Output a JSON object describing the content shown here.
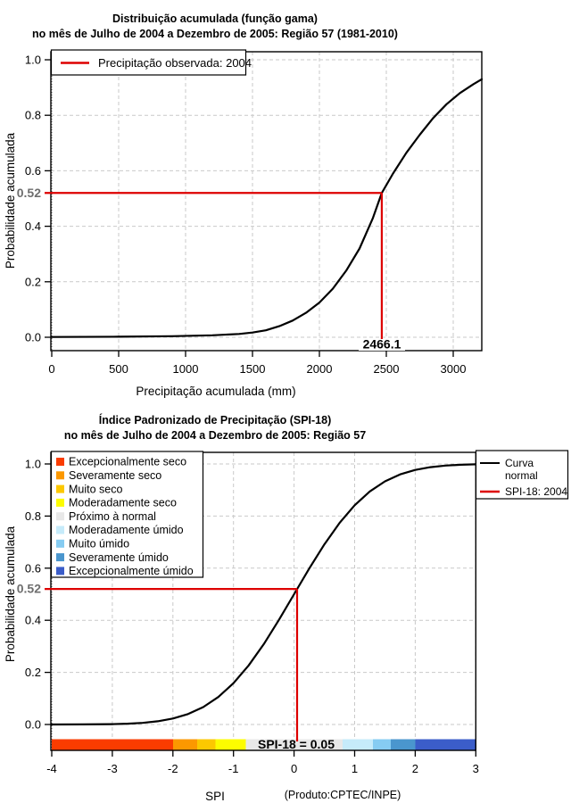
{
  "chart_data": [
    {
      "type": "line",
      "title": "Distribuição acumulada (função gama)",
      "subtitle": "no mês de Julho de 2004 a Dezembro de 2005: Região 57 (1981-2010)",
      "xlabel": "Precipitação acumulada (mm)",
      "ylabel": "Probabilidade acumulada",
      "xlim": [
        0,
        3213
      ],
      "ylim": [
        0,
        1.04
      ],
      "xticks": [
        0,
        500,
        1000,
        1500,
        2000,
        2500,
        3000
      ],
      "yticks": [
        0,
        0.2,
        0.4,
        0.6,
        0.8,
        1
      ],
      "ytick_labels": [
        "0.0",
        "0.2",
        "0.4",
        "0.6",
        "0.8",
        "1.0"
      ],
      "grid": true,
      "legend": {
        "position": "top-left",
        "entries": [
          {
            "label": "Precipitação observada: 2004",
            "color": "#dd0000"
          }
        ]
      },
      "highlight": {
        "x": 2466.1,
        "y": 0.52,
        "x_label": "2466.1",
        "y_label": "0.52",
        "color": "#dd0000"
      },
      "series": [
        {
          "name": "Distribuição acumulada (função gama)",
          "color": "#000000",
          "points": [
            [
              0,
              0.001
            ],
            [
              500,
              0.002
            ],
            [
              900,
              0.004
            ],
            [
              1200,
              0.007
            ],
            [
              1400,
              0.012
            ],
            [
              1500,
              0.017
            ],
            [
              1600,
              0.025
            ],
            [
              1700,
              0.04
            ],
            [
              1800,
              0.06
            ],
            [
              1900,
              0.088
            ],
            [
              2000,
              0.125
            ],
            [
              2100,
              0.175
            ],
            [
              2200,
              0.24
            ],
            [
              2300,
              0.32
            ],
            [
              2400,
              0.43
            ],
            [
              2466.1,
              0.52
            ],
            [
              2550,
              0.59
            ],
            [
              2650,
              0.665
            ],
            [
              2750,
              0.73
            ],
            [
              2850,
              0.79
            ],
            [
              2950,
              0.84
            ],
            [
              3050,
              0.88
            ],
            [
              3150,
              0.912
            ],
            [
              3213,
              0.93
            ]
          ]
        }
      ]
    },
    {
      "type": "line",
      "title": "Índice Padronizado de Precipitação (SPI-18)",
      "subtitle": "no mês de Julho de 2004 a Dezembro de 2005: Região 57",
      "xlabel": "SPI",
      "ylabel": "Probabilidade acumulada",
      "credit": "(Produto:CPTEC/INPE)",
      "xlim": [
        -4,
        3
      ],
      "ylim": [
        0,
        1.04
      ],
      "xticks": [
        -4,
        -3,
        -2,
        -1,
        0,
        1,
        2,
        3
      ],
      "yticks": [
        0,
        0.2,
        0.4,
        0.6,
        0.8,
        1
      ],
      "ytick_labels": [
        "0.0",
        "0.2",
        "0.4",
        "0.6",
        "0.8",
        "1.0"
      ],
      "grid": true,
      "annotation": "SPI-18 = 0.05",
      "highlight": {
        "x": 0.05,
        "y": 0.52,
        "y_label": "0.52",
        "color": "#dd0000"
      },
      "legend": {
        "position": "top-right",
        "entries": [
          {
            "label_lines": [
              "Curva",
              "normal"
            ],
            "color": "#000000"
          },
          {
            "label_lines": [
              "SPI-18: 2004"
            ],
            "color": "#dd0000"
          }
        ]
      },
      "categories_legend": [
        {
          "label": "Excepcionalmente seco",
          "color": "#fa3c00"
        },
        {
          "label": "Severamente seco",
          "color": "#fc9800"
        },
        {
          "label": "Muito seco",
          "color": "#fcc800"
        },
        {
          "label": "Moderadamente seco",
          "color": "#fcfc00"
        },
        {
          "label": "Próximo à normal",
          "color": "#e8e8e8"
        },
        {
          "label": "Moderadamente úmido",
          "color": "#c6ebfa"
        },
        {
          "label": "Muito úmido",
          "color": "#86ccf2"
        },
        {
          "label": "Severamente úmido",
          "color": "#4a96ce"
        },
        {
          "label": "Excepcionalmente úmido",
          "color": "#3b5dc9"
        }
      ],
      "spi_bar": [
        {
          "from": -4,
          "to": -2,
          "color": "#fa3c00"
        },
        {
          "from": -2,
          "to": -1.6,
          "color": "#fc9800"
        },
        {
          "from": -1.6,
          "to": -1.3,
          "color": "#fcc800"
        },
        {
          "from": -1.3,
          "to": -0.8,
          "color": "#fcfc00"
        },
        {
          "from": -0.8,
          "to": 0.8,
          "color": "#e8e8e8"
        },
        {
          "from": 0.8,
          "to": 1.3,
          "color": "#c6ebfa"
        },
        {
          "from": 1.3,
          "to": 1.6,
          "color": "#86ccf2"
        },
        {
          "from": 1.6,
          "to": 2,
          "color": "#4a96ce"
        },
        {
          "from": 2,
          "to": 3,
          "color": "#3b5dc9"
        }
      ],
      "series": [
        {
          "name": "Curva normal",
          "color": "#000000",
          "points": [
            [
              -4,
              3e-05
            ],
            [
              -3.5,
              0.0002
            ],
            [
              -3,
              0.0013
            ],
            [
              -2.75,
              0.003
            ],
            [
              -2.5,
              0.0062
            ],
            [
              -2.25,
              0.0122
            ],
            [
              -2,
              0.0228
            ],
            [
              -1.75,
              0.0401
            ],
            [
              -1.5,
              0.0668
            ],
            [
              -1.25,
              0.1056
            ],
            [
              -1,
              0.1587
            ],
            [
              -0.75,
              0.2266
            ],
            [
              -0.5,
              0.3085
            ],
            [
              -0.25,
              0.4013
            ],
            [
              0,
              0.5
            ],
            [
              0.25,
              0.5987
            ],
            [
              0.5,
              0.6915
            ],
            [
              0.75,
              0.7734
            ],
            [
              1,
              0.8413
            ],
            [
              1.25,
              0.8944
            ],
            [
              1.5,
              0.9332
            ],
            [
              1.75,
              0.9599
            ],
            [
              2,
              0.9772
            ],
            [
              2.25,
              0.9878
            ],
            [
              2.5,
              0.9938
            ],
            [
              2.75,
              0.997
            ],
            [
              3,
              0.9987
            ]
          ]
        }
      ]
    }
  ]
}
